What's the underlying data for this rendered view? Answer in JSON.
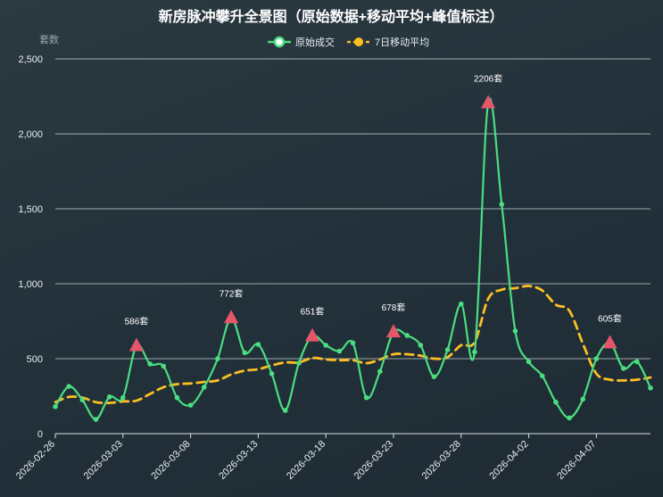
{
  "chart_data": {
    "type": "line",
    "title": "新房脉冲攀升全景图（原始数据+移动平均+峰值标注）",
    "ylabel": "套数",
    "ylim": [
      0,
      2500
    ],
    "yticks": [
      "0",
      "500",
      "1,000",
      "1,500",
      "2,000",
      "2,500"
    ],
    "ytick_values": [
      0,
      500,
      1000,
      1500,
      2000,
      2500
    ],
    "xticks": [
      "2026-02-26",
      "2026-03-03",
      "2026-03-08",
      "2026-03-13",
      "2026-03-18",
      "2026-03-23",
      "2026-03-28",
      "2026-04-02",
      "2026-04-07"
    ],
    "xtick_index": [
      0,
      5,
      10,
      15,
      20,
      25,
      30,
      35,
      40
    ],
    "grid": true,
    "legend_position": "top-center",
    "colors": {
      "raw": "#4ade80",
      "ma": "#fbbf24",
      "peak": "#e5566b"
    },
    "series": [
      {
        "name": "原始成交",
        "values": [
          180,
          315,
          225,
          95,
          245,
          240,
          586,
          465,
          450,
          240,
          190,
          310,
          500,
          772,
          540,
          595,
          400,
          155,
          470,
          651,
          590,
          550,
          605,
          240,
          415,
          678,
          655,
          590,
          380,
          560,
          865,
          545,
          2206,
          1530,
          685,
          480,
          385,
          210,
          105,
          230,
          500,
          605,
          435,
          480,
          305
        ]
      },
      {
        "name": "7日移动平均",
        "values": [
          210,
          245,
          240,
          210,
          205,
          215,
          220,
          265,
          310,
          330,
          335,
          345,
          355,
          395,
          420,
          430,
          455,
          475,
          475,
          505,
          495,
          490,
          490,
          470,
          495,
          530,
          530,
          520,
          500,
          510,
          590,
          610,
          900,
          960,
          970,
          985,
          955,
          860,
          820,
          600,
          400,
          360,
          355,
          360,
          375
        ]
      }
    ],
    "peaks": [
      {
        "index": 6,
        "value": 586,
        "label": "586套"
      },
      {
        "index": 13,
        "value": 772,
        "label": "772套"
      },
      {
        "index": 19,
        "value": 651,
        "label": "651套"
      },
      {
        "index": 25,
        "value": 678,
        "label": "678套"
      },
      {
        "index": 32,
        "value": 2206,
        "label": "2206套"
      },
      {
        "index": 41,
        "value": 605,
        "label": "605套"
      }
    ]
  }
}
